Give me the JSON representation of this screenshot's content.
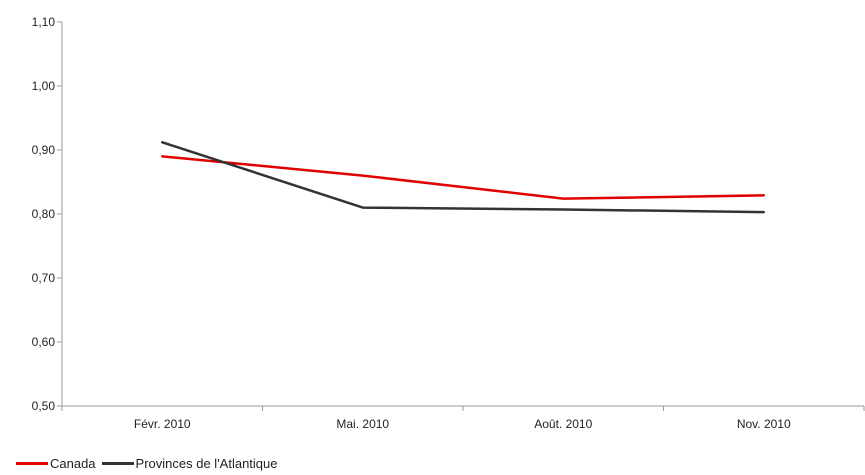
{
  "chart_data": {
    "type": "line",
    "categories": [
      "Févr. 2010",
      "Mai. 2010",
      "Août. 2010",
      "Nov. 2010"
    ],
    "series": [
      {
        "name": "Canada",
        "color": "#e00000",
        "values": [
          0.89,
          0.86,
          0.824,
          0.829
        ]
      },
      {
        "name": "Provinces de l'Atlantique",
        "color": "#333333",
        "values": [
          0.912,
          0.81,
          0.807,
          0.803
        ]
      }
    ],
    "ylim": [
      0.5,
      1.1
    ],
    "yticks": [
      "0,50",
      "0,60",
      "0,70",
      "0,80",
      "0,90",
      "1,00",
      "1,10"
    ],
    "grid": false,
    "legend_position": "bottom-left",
    "title": "",
    "xlabel": "",
    "ylabel": ""
  }
}
